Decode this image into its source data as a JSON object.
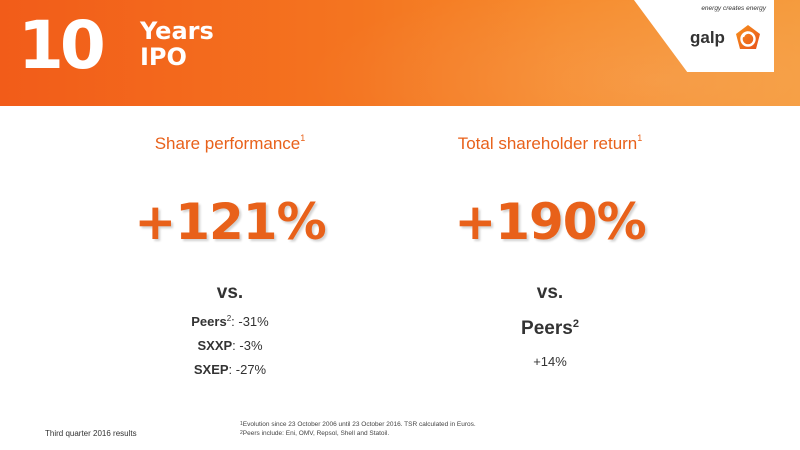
{
  "header": {
    "big_number": "10",
    "line1": "Years",
    "line2": "IPO",
    "tagline": "energy creates energy",
    "logo_word": "galp",
    "colors": {
      "banner": "#f47520",
      "accent": "#e8611a"
    }
  },
  "left": {
    "heading": "Share performance",
    "heading_sup": "1",
    "value": "+121%",
    "vs": "vs.",
    "comparisons": [
      {
        "label": "Peers",
        "sup": "2",
        "value": ": -31%"
      },
      {
        "label": "SXXP",
        "sup": "",
        "value": ": -3%"
      },
      {
        "label": "SXEP",
        "sup": "",
        "value": ": -27%"
      }
    ]
  },
  "right": {
    "heading": "Total shareholder return",
    "heading_sup": "1",
    "value": "+190%",
    "vs": "vs.",
    "peers_label": "Peers",
    "peers_sup": "2",
    "peers_value": "+14%"
  },
  "footnotes": [
    {
      "sup": "1",
      "text": "Evolution since 23 October 2006 until 23 October 2016. TSR calculated in Euros."
    },
    {
      "sup": "2",
      "text": "Peers include: Eni, OMV, Repsol, Shell and Statoil."
    }
  ],
  "footer": {
    "label": "Third quarter 2016 results"
  }
}
